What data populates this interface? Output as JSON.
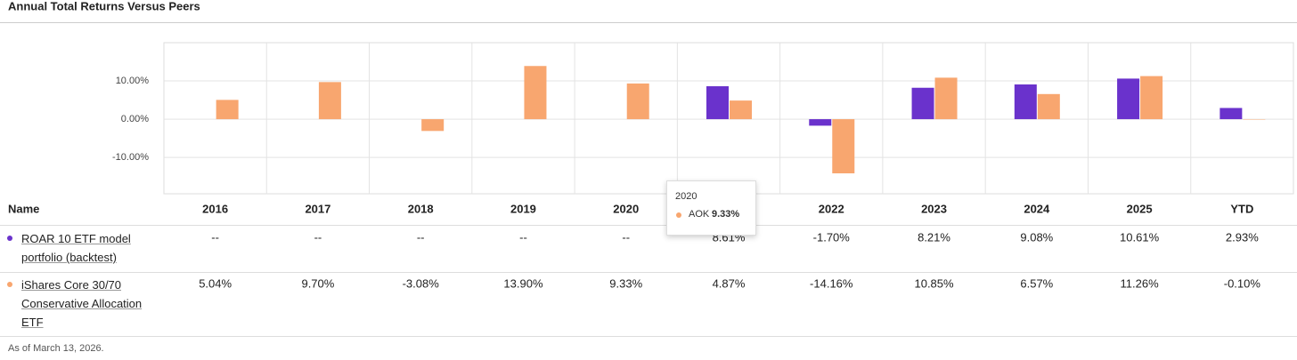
{
  "title": "Annual Total Returns Versus Peers",
  "chart_data": {
    "type": "bar",
    "categories": [
      "2016",
      "2017",
      "2018",
      "2019",
      "2020",
      null,
      "2022",
      "2023",
      "2024",
      "2025",
      "YTD"
    ],
    "series": [
      {
        "name": "ROAR 10 ETF model portfolio (backtest)",
        "color": "#6a32cc",
        "values": [
          null,
          null,
          null,
          null,
          null,
          8.61,
          -1.7,
          8.21,
          9.08,
          10.61,
          2.93
        ],
        "value_labels": [
          "--",
          "--",
          "--",
          "--",
          "--",
          "8.61%",
          "-1.70%",
          "8.21%",
          "9.08%",
          "10.61%",
          "2.93%"
        ]
      },
      {
        "name": "iShares Core 30/70 Conservative Allocation ETF",
        "color": "#f8a66f",
        "values": [
          5.04,
          9.7,
          -3.08,
          13.9,
          9.33,
          4.87,
          -14.16,
          10.85,
          6.57,
          11.26,
          -0.1
        ],
        "value_labels": [
          "5.04%",
          "9.70%",
          "-3.08%",
          "13.90%",
          "9.33%",
          "4.87%",
          "-14.16%",
          "10.85%",
          "6.57%",
          "11.26%",
          "-0.10%"
        ]
      }
    ],
    "ylim": [
      -19.5,
      20
    ],
    "yticks": [
      {
        "value": 10,
        "label": "10.00%"
      },
      {
        "value": 0,
        "label": "0.00%"
      },
      {
        "value": -10,
        "label": "-10.00%"
      }
    ],
    "grid": true
  },
  "table": {
    "name_header": "Name"
  },
  "tooltip": {
    "series": "AOK"
  },
  "footnote": "As of March 13, 2026."
}
